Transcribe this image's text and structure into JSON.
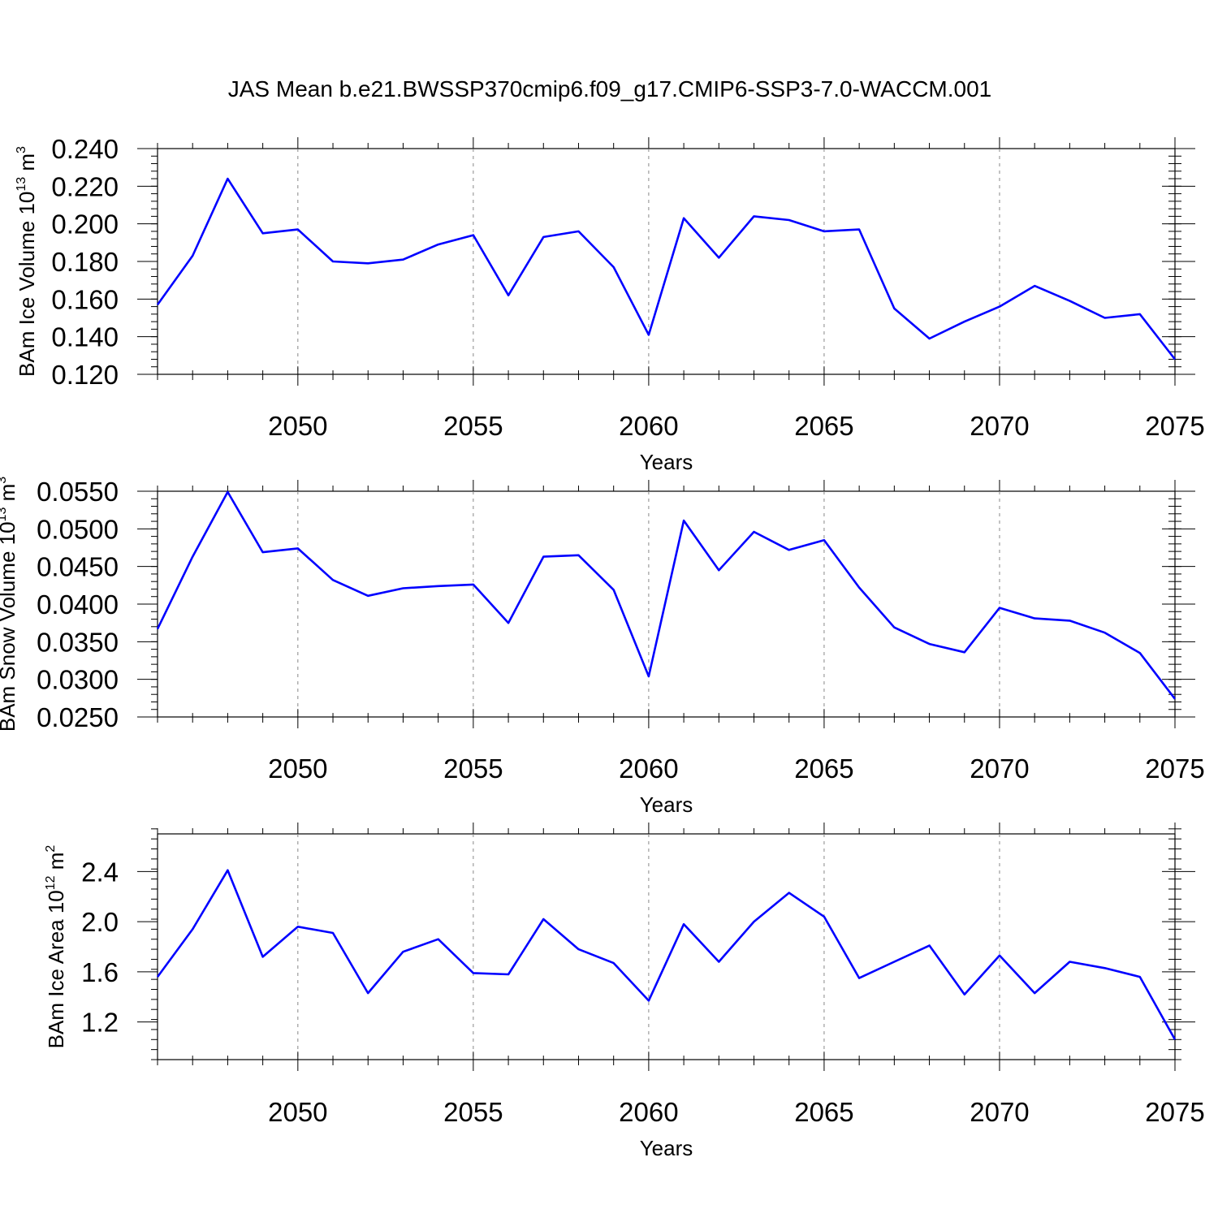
{
  "title": "JAS Mean b.e21.BWSSP370cmip6.f09_g17.CMIP6-SSP3-7.0-WACCM.001",
  "line_color": "#0000ff",
  "chart_data": [
    {
      "type": "line",
      "ylabel": "BAm Ice Volume",
      "ylabel_unit": "10",
      "ylabel_exp": "13",
      "ylabel_tail": "m",
      "ylabel_tail_exp": "3",
      "xlabel": "Years",
      "xlim": [
        2046,
        2075
      ],
      "ylim": [
        0.12,
        0.24
      ],
      "xticks": [
        2050,
        2055,
        2060,
        2065,
        2070,
        2075
      ],
      "xtick_labels": [
        "2050",
        "2055",
        "2060",
        "2065",
        "2070",
        "2075"
      ],
      "yticks": [
        0.12,
        0.14,
        0.16,
        0.18,
        0.2,
        0.22,
        0.24
      ],
      "ytick_labels": [
        "0.120",
        "0.140",
        "0.160",
        "0.180",
        "0.200",
        "0.220",
        "0.240"
      ],
      "ymin_step": 0.004,
      "x": [
        2046,
        2047,
        2048,
        2049,
        2050,
        2051,
        2052,
        2053,
        2054,
        2055,
        2056,
        2057,
        2058,
        2059,
        2060,
        2061,
        2062,
        2063,
        2064,
        2065,
        2066,
        2067,
        2068,
        2069,
        2070,
        2071,
        2072,
        2073,
        2074,
        2075
      ],
      "values": [
        0.157,
        0.183,
        0.224,
        0.195,
        0.197,
        0.18,
        0.179,
        0.181,
        0.189,
        0.194,
        0.162,
        0.193,
        0.196,
        0.177,
        0.141,
        0.203,
        0.182,
        0.204,
        0.202,
        0.196,
        0.197,
        0.155,
        0.139,
        0.148,
        0.156,
        0.167,
        0.159,
        0.15,
        0.152,
        0.128
      ]
    },
    {
      "type": "line",
      "ylabel": "BAm Snow Volume",
      "ylabel_unit": "10",
      "ylabel_exp": "13",
      "ylabel_tail": "m",
      "ylabel_tail_exp": "3",
      "xlabel": "Years",
      "xlim": [
        2046,
        2075
      ],
      "ylim": [
        0.025,
        0.055
      ],
      "xticks": [
        2050,
        2055,
        2060,
        2065,
        2070,
        2075
      ],
      "xtick_labels": [
        "2050",
        "2055",
        "2060",
        "2065",
        "2070",
        "2075"
      ],
      "yticks": [
        0.025,
        0.03,
        0.035,
        0.04,
        0.045,
        0.05,
        0.055
      ],
      "ytick_labels": [
        "0.0250",
        "0.0300",
        "0.0350",
        "0.0400",
        "0.0450",
        "0.0500",
        "0.0550"
      ],
      "ymin_step": 0.001,
      "x": [
        2046,
        2047,
        2048,
        2049,
        2050,
        2051,
        2052,
        2053,
        2054,
        2055,
        2056,
        2057,
        2058,
        2059,
        2060,
        2061,
        2062,
        2063,
        2064,
        2065,
        2066,
        2067,
        2068,
        2069,
        2070,
        2071,
        2072,
        2073,
        2074,
        2075
      ],
      "values": [
        0.0367,
        0.0463,
        0.0549,
        0.0469,
        0.0474,
        0.0432,
        0.0411,
        0.0421,
        0.0424,
        0.0426,
        0.0375,
        0.0463,
        0.0465,
        0.0419,
        0.0304,
        0.0511,
        0.0445,
        0.0496,
        0.0472,
        0.0485,
        0.0422,
        0.0369,
        0.0347,
        0.0336,
        0.0395,
        0.0381,
        0.0378,
        0.0362,
        0.0335,
        0.0274
      ]
    },
    {
      "type": "line",
      "ylabel": "BAm Ice Area",
      "ylabel_unit": "10",
      "ylabel_exp": "12",
      "ylabel_tail": "m",
      "ylabel_tail_exp": "2",
      "xlabel": "Years",
      "xlim": [
        2046,
        2075
      ],
      "ylim": [
        0.9,
        2.7
      ],
      "xticks": [
        2050,
        2055,
        2060,
        2065,
        2070,
        2075
      ],
      "xtick_labels": [
        "2050",
        "2055",
        "2060",
        "2065",
        "2070",
        "2075"
      ],
      "yticks": [
        1.2,
        1.6,
        2.0,
        2.4
      ],
      "ytick_labels": [
        "1.2",
        "1.6",
        "2.0",
        "2.4"
      ],
      "ymin_step": 0.08,
      "x": [
        2046,
        2047,
        2048,
        2049,
        2050,
        2051,
        2052,
        2053,
        2054,
        2055,
        2056,
        2057,
        2058,
        2059,
        2060,
        2061,
        2062,
        2063,
        2064,
        2065,
        2066,
        2067,
        2068,
        2069,
        2070,
        2071,
        2072,
        2073,
        2074,
        2075
      ],
      "values": [
        1.56,
        1.94,
        2.41,
        1.72,
        1.96,
        1.91,
        1.43,
        1.76,
        1.86,
        1.59,
        1.58,
        2.02,
        1.78,
        1.67,
        1.37,
        1.98,
        1.68,
        2.0,
        2.23,
        2.04,
        1.55,
        1.68,
        1.81,
        1.42,
        1.73,
        1.43,
        1.68,
        1.63,
        1.56,
        1.06
      ]
    }
  ]
}
